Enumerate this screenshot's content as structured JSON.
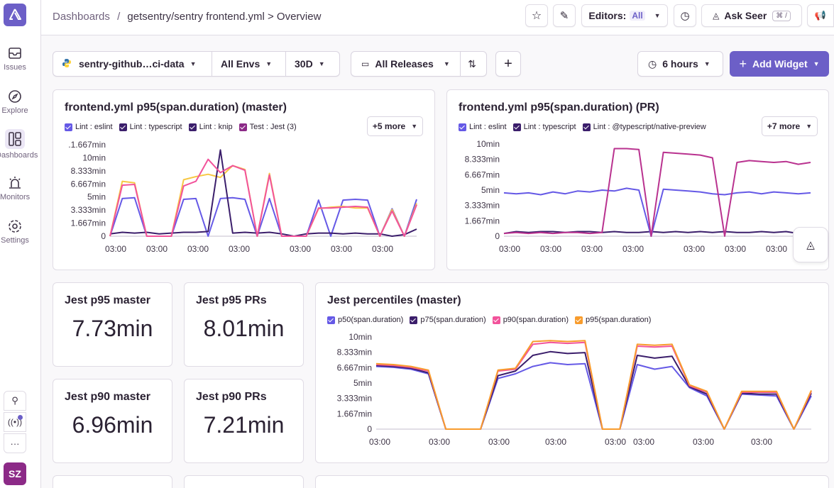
{
  "sidebar": {
    "items": [
      {
        "label": "Issues"
      },
      {
        "label": "Explore"
      },
      {
        "label": "Dashboards"
      },
      {
        "label": "Monitors"
      },
      {
        "label": "Settings"
      }
    ],
    "avatar": "SZ"
  },
  "header": {
    "breadcrumb_root": "Dashboards",
    "breadcrumb_sep": "/",
    "breadcrumb_current": "getsentry/sentry frontend.yml > Overview",
    "editors_label": "Editors:",
    "editors_value": "All",
    "ask_seer": "Ask Seer",
    "ask_seer_shortcut": "⌘ /"
  },
  "filters": {
    "project": "sentry-github…ci-data",
    "envs": "All Envs",
    "period": "30D",
    "releases": "All Releases",
    "interval": "6 hours",
    "add_widget": "Add Widget"
  },
  "colors": {
    "accent": "#6c5fc7",
    "purple": "#6559e6",
    "dark_purple": "#3b1e6b",
    "magenta": "#b9328f",
    "pink": "#f2539b",
    "orange": "#f89c2d",
    "yellow": "#f7c844",
    "green": "#67c23a",
    "gray": "#a0a0a0"
  },
  "widgets": {
    "w1": {
      "title": "frontend.yml p95(span.duration) (master)",
      "legend": [
        "Lint : eslint",
        "Lint : typescript",
        "Lint : knip",
        "Test : Jest (3)"
      ],
      "more": "+5 more",
      "yticks": [
        ".1.667min",
        "10min",
        "8.333min",
        "6.667min",
        "5min",
        "3.333min",
        "1.667min",
        "0"
      ],
      "xticks": [
        "03:00",
        "03:00",
        "03:00",
        "03:00",
        "03:00",
        "03:00",
        "03:00"
      ]
    },
    "w2": {
      "title": "frontend.yml p95(span.duration) (PR)",
      "legend": [
        "Lint : eslint",
        "Lint : typescript",
        "Lint : @typescript/native-preview"
      ],
      "more": "+7 more",
      "yticks": [
        "10min",
        "8.333min",
        "6.667min",
        "5min",
        "3.333min",
        "1.667min",
        "0"
      ],
      "xticks": [
        "03:00",
        "03:00",
        "03:00",
        "03:00",
        "03:00",
        "03:00",
        "03:00"
      ]
    },
    "stats": [
      {
        "title": "Jest p95 master",
        "value": "7.73min"
      },
      {
        "title": "Jest p95 PRs",
        "value": "8.01min"
      },
      {
        "title": "Jest p90 master",
        "value": "6.96min"
      },
      {
        "title": "Jest p90 PRs",
        "value": "7.21min"
      }
    ],
    "w3": {
      "title": "Jest percentiles (master)",
      "legend": [
        "p50(span.duration)",
        "p75(span.duration)",
        "p90(span.duration)",
        "p95(span.duration)"
      ],
      "yticks": [
        "10min",
        "8.333min",
        "6.667min",
        "5min",
        "3.333min",
        "1.667min",
        "0"
      ],
      "xticks": [
        "03:00",
        "03:00",
        "03:00",
        "03:00",
        "03:00",
        "03:00",
        "03:00",
        "03:00"
      ]
    }
  },
  "chart_data": [
    {
      "type": "line",
      "title": "frontend.yml p95(span.duration) (master)",
      "ylim": [
        0,
        11.667
      ],
      "series": [
        {
          "name": "Lint : eslint",
          "values": [
            0,
            4.8,
            4.9,
            0,
            0,
            0,
            4.7,
            4.8,
            0,
            4.8,
            4.9,
            4.7,
            0,
            4.8,
            0,
            0,
            0,
            4.6,
            0,
            4.6,
            4.7,
            4.6,
            0,
            3.5,
            0,
            4.7
          ]
        },
        {
          "name": "Lint : typescript",
          "values": [
            0,
            7.0,
            6.8,
            0,
            0,
            0,
            7.2,
            7.6,
            7.9,
            7.5,
            9.0,
            8.5,
            0,
            8.0,
            0,
            0,
            0,
            3.5,
            3.7,
            3.8,
            3.6,
            3.6,
            0,
            3.4,
            0,
            4.2
          ]
        },
        {
          "name": "Lint : knip",
          "values": [
            0.3,
            0.5,
            0.4,
            0.5,
            0.3,
            0.4,
            0.5,
            0.5,
            0.6,
            11.0,
            0.4,
            0.5,
            0.4,
            0.5,
            0.3,
            0,
            0.3,
            0.4,
            0.4,
            0.3,
            0.4,
            0.3,
            0.3,
            0,
            0.2,
            0.9
          ]
        },
        {
          "name": "Test : Jest (3)",
          "values": [
            0,
            6.5,
            6.6,
            0,
            0,
            0,
            6.4,
            7.0,
            9.8,
            8.1,
            9.0,
            8.4,
            0,
            7.8,
            0,
            0,
            0,
            3.6,
            3.6,
            3.7,
            3.8,
            3.7,
            0,
            3.2,
            0,
            4.0
          ]
        }
      ]
    },
    {
      "type": "line",
      "title": "frontend.yml p95(span.duration) (PR)",
      "ylim": [
        0,
        10
      ],
      "series": [
        {
          "name": "Lint : eslint",
          "values": [
            0.3,
            0.5,
            0.4,
            0.5,
            0.5,
            0.4,
            0.5,
            0.5,
            0.4,
            0.5,
            0.4,
            0.4,
            0.5,
            0.4,
            0.5,
            0.4,
            0.5,
            0.4,
            0.5,
            0.4,
            0.4,
            0.5,
            0.4,
            0.5,
            0.3,
            0.4
          ]
        },
        {
          "name": "Lint : typescript",
          "values": [
            4.7,
            4.6,
            4.7,
            4.5,
            4.8,
            4.6,
            4.9,
            4.8,
            5.0,
            4.9,
            5.2,
            5.0,
            0,
            5.1,
            5.0,
            4.9,
            4.8,
            4.6,
            4.5,
            4.7,
            4.8,
            4.6,
            4.8,
            4.7,
            4.6,
            4.7
          ]
        },
        {
          "name": "Lint : @typescript/native-preview",
          "values": [
            0.3,
            0.4,
            0.3,
            0.4,
            0.3,
            0.4,
            0.4,
            0.3,
            0.4,
            9.5,
            9.5,
            9.4,
            0,
            9.1,
            9.0,
            8.9,
            8.8,
            8.5,
            0,
            8.0,
            8.2,
            8.1,
            8.0,
            8.1,
            7.8,
            8.0
          ]
        }
      ]
    },
    {
      "type": "line",
      "title": "Jest percentiles (master)",
      "ylim": [
        0,
        10
      ],
      "series": [
        {
          "name": "p50(span.duration)",
          "values": [
            6.8,
            6.7,
            6.5,
            6.0,
            0,
            0,
            0,
            5.5,
            6.0,
            6.8,
            7.2,
            7.0,
            7.1,
            0,
            0,
            7.0,
            6.5,
            6.8,
            4.5,
            3.6,
            0,
            3.8,
            3.7,
            3.6,
            0,
            3.6
          ]
        },
        {
          "name": "p75(span.duration)",
          "values": [
            6.9,
            6.8,
            6.6,
            6.1,
            0,
            0,
            0,
            5.8,
            6.3,
            8.0,
            8.4,
            8.2,
            8.3,
            0,
            0,
            8.0,
            7.7,
            7.9,
            4.6,
            3.8,
            0,
            3.9,
            3.8,
            3.8,
            0,
            3.9
          ]
        },
        {
          "name": "p90(span.duration)",
          "values": [
            7.0,
            6.9,
            6.7,
            6.3,
            0,
            0,
            0,
            6.3,
            6.5,
            9.2,
            9.4,
            9.3,
            9.4,
            0,
            0,
            9.0,
            8.9,
            9.0,
            4.7,
            4.0,
            0,
            4.0,
            4.0,
            4.0,
            0,
            4.1
          ]
        },
        {
          "name": "p95(span.duration)",
          "values": [
            7.1,
            7.0,
            6.8,
            6.4,
            0,
            0,
            0,
            6.4,
            6.6,
            9.5,
            9.6,
            9.5,
            9.6,
            0,
            0,
            9.2,
            9.1,
            9.2,
            4.8,
            4.1,
            0,
            4.1,
            4.1,
            4.1,
            0,
            4.2
          ]
        }
      ]
    }
  ]
}
